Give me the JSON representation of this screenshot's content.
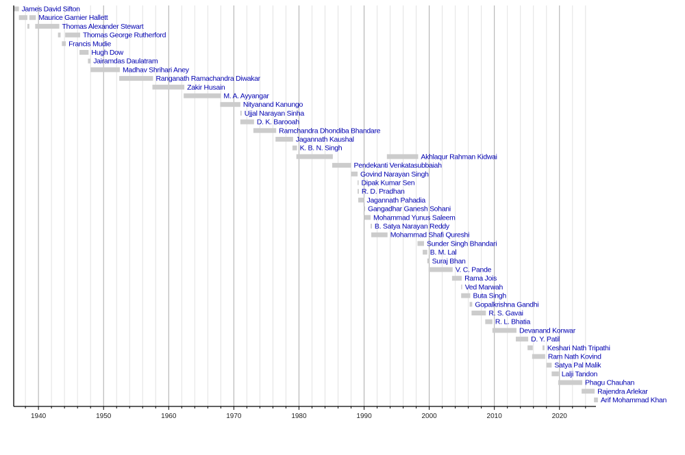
{
  "chart_data": {
    "type": "timeline",
    "title": "",
    "xlabel": "",
    "ylabel": "",
    "xlim": [
      1936.2,
      2025.6
    ],
    "grid": true,
    "ticks": [
      1940,
      1950,
      1960,
      1970,
      1980,
      1990,
      2000,
      2010,
      2020
    ],
    "colors": {
      "bar": "#cccccc",
      "label": "#0000b0",
      "major_grid": "#aaaaaa",
      "minor_grid": "#e2e2e2",
      "axis": "#000000"
    },
    "rows": [
      {
        "name": "James David Sifton",
        "spans": [
          [
            1936.2,
            1937.0
          ]
        ]
      },
      {
        "name": "Maurice Garnier Hallett",
        "spans": [
          [
            1937.0,
            1938.3
          ],
          [
            1938.6,
            1939.6
          ]
        ]
      },
      {
        "name": "Thomas Alexander Stewart",
        "spans": [
          [
            1938.3,
            1938.6
          ],
          [
            1939.5,
            1943.2
          ]
        ]
      },
      {
        "name": "Thomas George Rutherford",
        "spans": [
          [
            1943.0,
            1943.4
          ],
          [
            1944.1,
            1946.4
          ]
        ]
      },
      {
        "name": "Francis Mudie",
        "spans": [
          [
            1943.6,
            1944.2
          ]
        ]
      },
      {
        "name": "Hugh Dow",
        "spans": [
          [
            1946.3,
            1947.7
          ]
        ]
      },
      {
        "name": "Jairamdas Daulatram",
        "spans": [
          [
            1947.6,
            1948.0
          ]
        ]
      },
      {
        "name": "Madhav Shrihari Aney",
        "spans": [
          [
            1948.0,
            1952.5
          ]
        ]
      },
      {
        "name": "Ranganath Ramachandra Diwakar",
        "spans": [
          [
            1952.4,
            1957.6
          ]
        ]
      },
      {
        "name": "Zakir Husain",
        "spans": [
          [
            1957.5,
            1962.4
          ]
        ]
      },
      {
        "name": "M. A. Ayyangar",
        "spans": [
          [
            1962.3,
            1968.0
          ]
        ]
      },
      {
        "name": "Nityanand Kanungo",
        "spans": [
          [
            1967.9,
            1971.0
          ]
        ]
      },
      {
        "name": "Ujjal Narayan Sinha",
        "spans": [
          [
            1971.0,
            1971.2
          ]
        ]
      },
      {
        "name": "D. K. Barooah",
        "spans": [
          [
            1971.0,
            1973.1
          ]
        ]
      },
      {
        "name": "Ramchandra Dhondiba Bhandare",
        "spans": [
          [
            1973.0,
            1976.5
          ]
        ]
      },
      {
        "name": "Jagannath Kaushal",
        "spans": [
          [
            1976.4,
            1979.1
          ]
        ]
      },
      {
        "name": "K. B. N. Singh",
        "spans": [
          [
            1979.0,
            1979.7
          ]
        ]
      },
      {
        "name": "Akhlaqur Rahman Kidwai",
        "spans": [
          [
            1979.6,
            1985.2
          ],
          [
            1993.5,
            1998.3
          ]
        ]
      },
      {
        "name": "Pendekanti Venkatasubbaiah",
        "spans": [
          [
            1985.1,
            1988.0
          ]
        ]
      },
      {
        "name": "Govind Narayan Singh",
        "spans": [
          [
            1988.0,
            1989.0
          ]
        ]
      },
      {
        "name": "Dipak Kumar Sen",
        "spans": [
          [
            1989.0,
            1989.1
          ]
        ]
      },
      {
        "name": "R. D. Pradhan",
        "spans": [
          [
            1989.0,
            1989.2
          ]
        ]
      },
      {
        "name": "Jagannath Pahadia",
        "spans": [
          [
            1989.1,
            1990.0
          ]
        ]
      },
      {
        "name": "Gangadhar Ganesh Sohani",
        "spans": [
          [
            1990.0,
            1990.1
          ]
        ]
      },
      {
        "name": "Mohammad Yunus Saleem",
        "spans": [
          [
            1990.0,
            1991.0
          ]
        ]
      },
      {
        "name": "B. Satya Narayan Reddy",
        "spans": [
          [
            1991.0,
            1991.2
          ]
        ]
      },
      {
        "name": "Mohammad Shafi Qureshi",
        "spans": [
          [
            1991.1,
            1993.6
          ]
        ]
      },
      {
        "name": "Sunder Singh Bhandari",
        "spans": [
          [
            1998.2,
            1999.2
          ]
        ]
      },
      {
        "name": "B. M. Lal",
        "spans": [
          [
            1999.0,
            1999.7
          ]
        ]
      },
      {
        "name": "Suraj Bhan",
        "spans": [
          [
            1999.7,
            2000.0
          ]
        ]
      },
      {
        "name": "V. C. Pande",
        "spans": [
          [
            1999.9,
            2003.6
          ]
        ]
      },
      {
        "name": "Rama Jois",
        "spans": [
          [
            2003.5,
            2005.0
          ]
        ]
      },
      {
        "name": "Ved Marwah",
        "spans": [
          [
            2004.9,
            2005.0
          ]
        ]
      },
      {
        "name": "Buta Singh",
        "spans": [
          [
            2004.9,
            2006.3
          ]
        ]
      },
      {
        "name": "Gopalkrishna Gandhi",
        "spans": [
          [
            2006.2,
            2006.6
          ]
        ]
      },
      {
        "name": "R. S. Gavai",
        "spans": [
          [
            2006.5,
            2008.7
          ]
        ]
      },
      {
        "name": "R. L. Bhatia",
        "spans": [
          [
            2008.6,
            2009.7
          ]
        ]
      },
      {
        "name": "Devanand Konwar",
        "spans": [
          [
            2009.7,
            2013.4
          ]
        ]
      },
      {
        "name": "D. Y. Patil",
        "spans": [
          [
            2013.3,
            2015.2
          ]
        ]
      },
      {
        "name": "Keshari Nath Tripathi",
        "spans": [
          [
            2015.1,
            2015.9
          ],
          [
            2017.4,
            2017.7
          ]
        ]
      },
      {
        "name": "Ram Nath Kovind",
        "spans": [
          [
            2015.8,
            2017.8
          ]
        ]
      },
      {
        "name": "Satya Pal Malik",
        "spans": [
          [
            2018.0,
            2018.8
          ]
        ]
      },
      {
        "name": "Lalji Tandon",
        "spans": [
          [
            2018.8,
            2019.9
          ]
        ]
      },
      {
        "name": "Phagu Chauhan",
        "spans": [
          [
            2019.8,
            2023.5
          ]
        ]
      },
      {
        "name": "Rajendra Arlekar",
        "spans": [
          [
            2023.4,
            2025.4
          ]
        ]
      },
      {
        "name": "Arif Mohammad Khan",
        "spans": [
          [
            2025.3,
            2025.9
          ]
        ]
      }
    ]
  }
}
